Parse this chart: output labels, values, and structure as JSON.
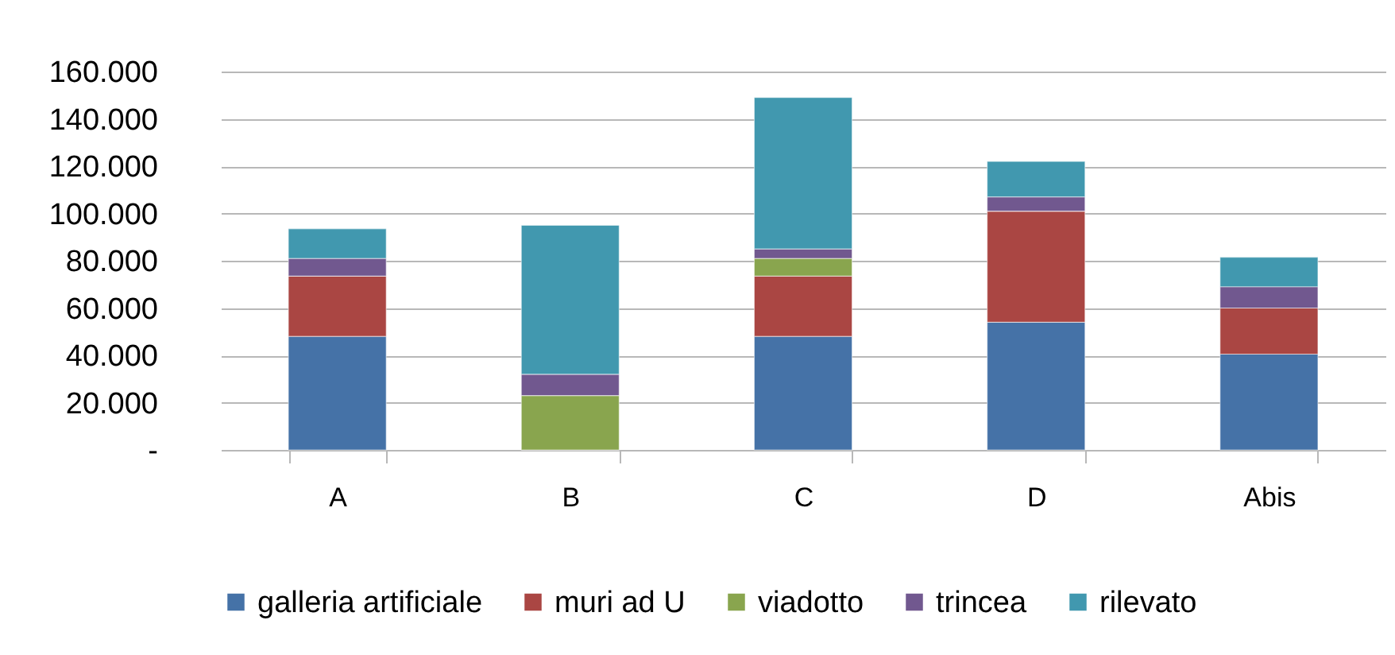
{
  "chart_data": {
    "type": "bar",
    "stacked": true,
    "categories": [
      "A",
      "B",
      "C",
      "D",
      "Abis"
    ],
    "series": [
      {
        "name": "galleria artificiale",
        "color": "#4572a7",
        "values": [
          48000,
          0,
          48000,
          54000,
          40500
        ]
      },
      {
        "name": "muri ad U",
        "color": "#aa4643",
        "values": [
          25500,
          0,
          25500,
          47000,
          19500
        ]
      },
      {
        "name": "viadotto",
        "color": "#89a54e",
        "values": [
          0,
          23000,
          7500,
          0,
          0
        ]
      },
      {
        "name": "trincea",
        "color": "#71588f",
        "values": [
          7500,
          9000,
          4000,
          6000,
          9000
        ]
      },
      {
        "name": "rilevato",
        "color": "#4198af",
        "values": [
          12500,
          63000,
          64000,
          15000,
          12500
        ]
      }
    ],
    "ylim": [
      0,
      160000
    ],
    "yticks": [
      {
        "value": 0,
        "label": "-"
      },
      {
        "value": 20000,
        "label": "20.000"
      },
      {
        "value": 40000,
        "label": "40.000"
      },
      {
        "value": 60000,
        "label": "60.000"
      },
      {
        "value": 80000,
        "label": "80.000"
      },
      {
        "value": 100000,
        "label": "100.000"
      },
      {
        "value": 120000,
        "label": "120.000"
      },
      {
        "value": 140000,
        "label": "140.000"
      },
      {
        "value": 160000,
        "label": "160.000"
      }
    ],
    "grid": "y",
    "legend": "bottom"
  }
}
